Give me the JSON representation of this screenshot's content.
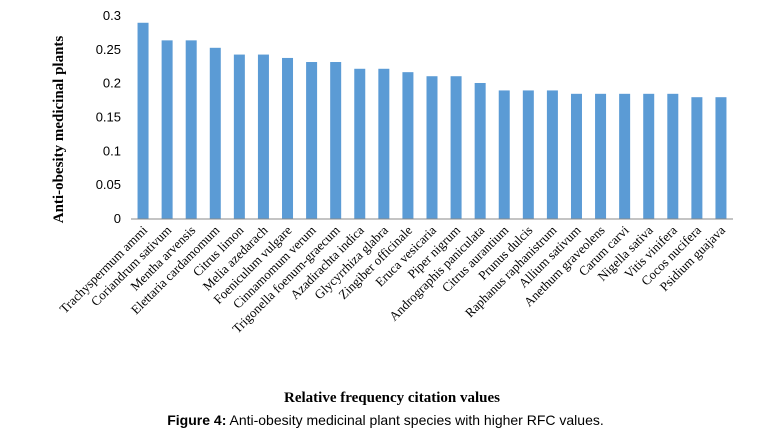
{
  "chart_data": {
    "type": "bar",
    "xlabel": "Relative frequency citation values",
    "ylabel": "Anti-obesity medicinal plants",
    "ylim": [
      0,
      0.3
    ],
    "yticks": [
      "0",
      "0.05",
      "0.1",
      "0.15",
      "0.2",
      "0.25",
      "0.3"
    ],
    "grid": false,
    "bar_color": "#5b9bd5",
    "categories": [
      "Trachyspermum ammi",
      "Coriandrum sativum",
      "Mentha arvensis",
      "Elettaria cardamomum",
      "Citrus limon",
      "Melia azedarach",
      "Foeniculum vulgare",
      "Cinnamomum verum",
      "Trigonella foenum-graecum",
      "Azadirachta indica",
      "Glycyrrhiza glabra",
      "Zingiber officinale",
      "Eruca vesicaria",
      "Piper nigrum",
      "Andrographis paniculata",
      "Citrus aurantium",
      "Prunus dulcis",
      "Raphanus raphanistrum",
      "Allium sativum",
      "Anethum graveolens",
      "Carum carvi",
      "Nigella sativa",
      "Vitis vinifera",
      "Cocos nucifera",
      "Psidium guajava"
    ],
    "values": [
      0.29,
      0.264,
      0.264,
      0.253,
      0.243,
      0.243,
      0.238,
      0.232,
      0.232,
      0.222,
      0.222,
      0.217,
      0.211,
      0.211,
      0.201,
      0.19,
      0.19,
      0.19,
      0.185,
      0.185,
      0.185,
      0.185,
      0.185,
      0.18,
      0.18
    ]
  },
  "caption": {
    "label": "Figure 4:",
    "text": " Anti-obesity medicinal plant species with higher RFC values."
  }
}
